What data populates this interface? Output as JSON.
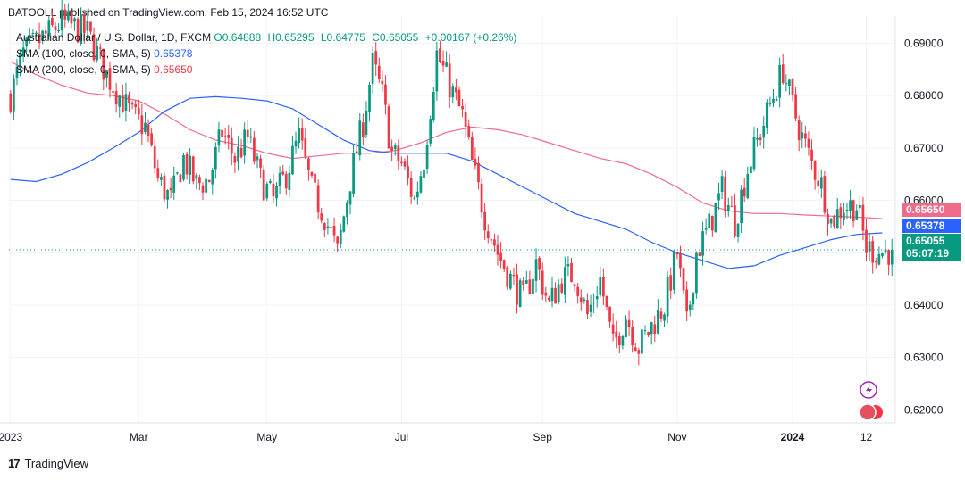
{
  "header": {
    "published": "BATOOLL published on TradingView.com, Feb 15, 2024 16:52 UTC"
  },
  "legend": {
    "symbol": "Australian Dollar / U.S. Dollar, 1D, FXCM",
    "o": "O0.64888",
    "h": "H0.65295",
    "l": "L0.64775",
    "c": "C0.65055",
    "change": "+0.00167 (+0.26%)",
    "sma100_label": "SMA (100, close, 0, SMA, 5)",
    "sma100_value": "0.65378",
    "sma200_label": "SMA (200, close, 0, SMA, 5)",
    "sma200_value": "0.65650"
  },
  "price_tags": {
    "sma200": "0.65650",
    "sma100": "0.65378",
    "last": "0.65055",
    "countdown": "05:07:19"
  },
  "footer": {
    "brand": "TradingView"
  },
  "colors": {
    "up": "#089981",
    "down": "#f23645",
    "sma100": "#2962ff",
    "sma200": "#f06b8a",
    "grid": "#f0f3fa"
  },
  "chart_data": {
    "type": "candlestick",
    "symbol": "AUDUSD",
    "timeframe": "1D",
    "ylim": [
      0.6175,
      0.6935
    ],
    "yticks": [
      "0.69000",
      "0.68000",
      "0.67000",
      "0.66000",
      "0.65000",
      "0.64000",
      "0.63000",
      "0.62000"
    ],
    "ytick_values": [
      0.69,
      0.68,
      0.67,
      0.66,
      0.65,
      0.64,
      0.63,
      0.62
    ],
    "xticks": [
      "2023",
      "Mar",
      "May",
      "Jul",
      "Sep",
      "Nov",
      "2024",
      "12"
    ],
    "xtick_index": [
      0,
      40,
      80,
      122,
      166,
      208,
      244,
      267
    ],
    "n_bars": 276,
    "last_close": 0.65055,
    "anchors": [
      [
        0,
        0.68
      ],
      [
        4,
        0.688
      ],
      [
        8,
        0.69
      ],
      [
        16,
        0.694
      ],
      [
        24,
        0.692
      ],
      [
        30,
        0.684
      ],
      [
        34,
        0.68
      ],
      [
        38,
        0.676
      ],
      [
        42,
        0.674
      ],
      [
        46,
        0.664
      ],
      [
        50,
        0.66
      ],
      [
        54,
        0.668
      ],
      [
        58,
        0.663
      ],
      [
        62,
        0.664
      ],
      [
        66,
        0.673
      ],
      [
        70,
        0.668
      ],
      [
        74,
        0.672
      ],
      [
        78,
        0.664
      ],
      [
        82,
        0.66
      ],
      [
        86,
        0.665
      ],
      [
        90,
        0.672
      ],
      [
        94,
        0.662
      ],
      [
        98,
        0.657
      ],
      [
        102,
        0.65
      ],
      [
        106,
        0.664
      ],
      [
        110,
        0.675
      ],
      [
        113,
        0.686
      ],
      [
        116,
        0.68
      ],
      [
        119,
        0.669
      ],
      [
        122,
        0.667
      ],
      [
        126,
        0.66
      ],
      [
        129,
        0.668
      ],
      [
        133,
        0.688
      ],
      [
        137,
        0.682
      ],
      [
        141,
        0.676
      ],
      [
        144,
        0.667
      ],
      [
        148,
        0.657
      ],
      [
        152,
        0.65
      ],
      [
        156,
        0.645
      ],
      [
        160,
        0.641
      ],
      [
        164,
        0.648
      ],
      [
        168,
        0.64
      ],
      [
        172,
        0.645
      ],
      [
        176,
        0.646
      ],
      [
        180,
        0.638
      ],
      [
        184,
        0.645
      ],
      [
        188,
        0.632
      ],
      [
        192,
        0.638
      ],
      [
        196,
        0.632
      ],
      [
        200,
        0.636
      ],
      [
        204,
        0.64
      ],
      [
        208,
        0.65
      ],
      [
        211,
        0.636
      ],
      [
        214,
        0.65
      ],
      [
        218,
        0.655
      ],
      [
        222,
        0.662
      ],
      [
        226,
        0.656
      ],
      [
        230,
        0.666
      ],
      [
        234,
        0.673
      ],
      [
        238,
        0.68
      ],
      [
        241,
        0.685
      ],
      [
        244,
        0.678
      ],
      [
        247,
        0.672
      ],
      [
        250,
        0.667
      ],
      [
        253,
        0.663
      ],
      [
        256,
        0.656
      ],
      [
        260,
        0.659
      ],
      [
        264,
        0.659
      ],
      [
        267,
        0.651
      ],
      [
        271,
        0.65
      ],
      [
        275,
        0.6505
      ]
    ],
    "sma100": [
      [
        0,
        0.664
      ],
      [
        8,
        0.6636
      ],
      [
        16,
        0.665
      ],
      [
        24,
        0.6672
      ],
      [
        32,
        0.67
      ],
      [
        40,
        0.673
      ],
      [
        48,
        0.677
      ],
      [
        56,
        0.6795
      ],
      [
        64,
        0.6798
      ],
      [
        72,
        0.6795
      ],
      [
        80,
        0.679
      ],
      [
        88,
        0.6775
      ],
      [
        96,
        0.6745
      ],
      [
        104,
        0.6715
      ],
      [
        112,
        0.6695
      ],
      [
        120,
        0.669
      ],
      [
        128,
        0.669
      ],
      [
        136,
        0.669
      ],
      [
        144,
        0.6675
      ],
      [
        152,
        0.665
      ],
      [
        160,
        0.6625
      ],
      [
        168,
        0.66
      ],
      [
        176,
        0.6575
      ],
      [
        184,
        0.656
      ],
      [
        192,
        0.6545
      ],
      [
        200,
        0.652
      ],
      [
        208,
        0.65
      ],
      [
        216,
        0.6485
      ],
      [
        224,
        0.647
      ],
      [
        232,
        0.6475
      ],
      [
        240,
        0.6495
      ],
      [
        248,
        0.651
      ],
      [
        256,
        0.6525
      ],
      [
        264,
        0.6535
      ],
      [
        272,
        0.6538
      ]
    ],
    "sma200": [
      [
        0,
        0.6865
      ],
      [
        8,
        0.684
      ],
      [
        16,
        0.682
      ],
      [
        24,
        0.6805
      ],
      [
        32,
        0.68
      ],
      [
        40,
        0.679
      ],
      [
        48,
        0.6765
      ],
      [
        56,
        0.6735
      ],
      [
        64,
        0.6715
      ],
      [
        72,
        0.6705
      ],
      [
        80,
        0.669
      ],
      [
        88,
        0.668
      ],
      [
        96,
        0.6685
      ],
      [
        104,
        0.669
      ],
      [
        112,
        0.669
      ],
      [
        120,
        0.6695
      ],
      [
        128,
        0.671
      ],
      [
        136,
        0.673
      ],
      [
        144,
        0.674
      ],
      [
        152,
        0.6735
      ],
      [
        160,
        0.6725
      ],
      [
        168,
        0.671
      ],
      [
        176,
        0.6695
      ],
      [
        184,
        0.668
      ],
      [
        192,
        0.667
      ],
      [
        200,
        0.665
      ],
      [
        208,
        0.6625
      ],
      [
        216,
        0.6595
      ],
      [
        224,
        0.658
      ],
      [
        232,
        0.6575
      ],
      [
        240,
        0.6575
      ],
      [
        248,
        0.6572
      ],
      [
        256,
        0.657
      ],
      [
        264,
        0.6568
      ],
      [
        272,
        0.6565
      ]
    ]
  }
}
